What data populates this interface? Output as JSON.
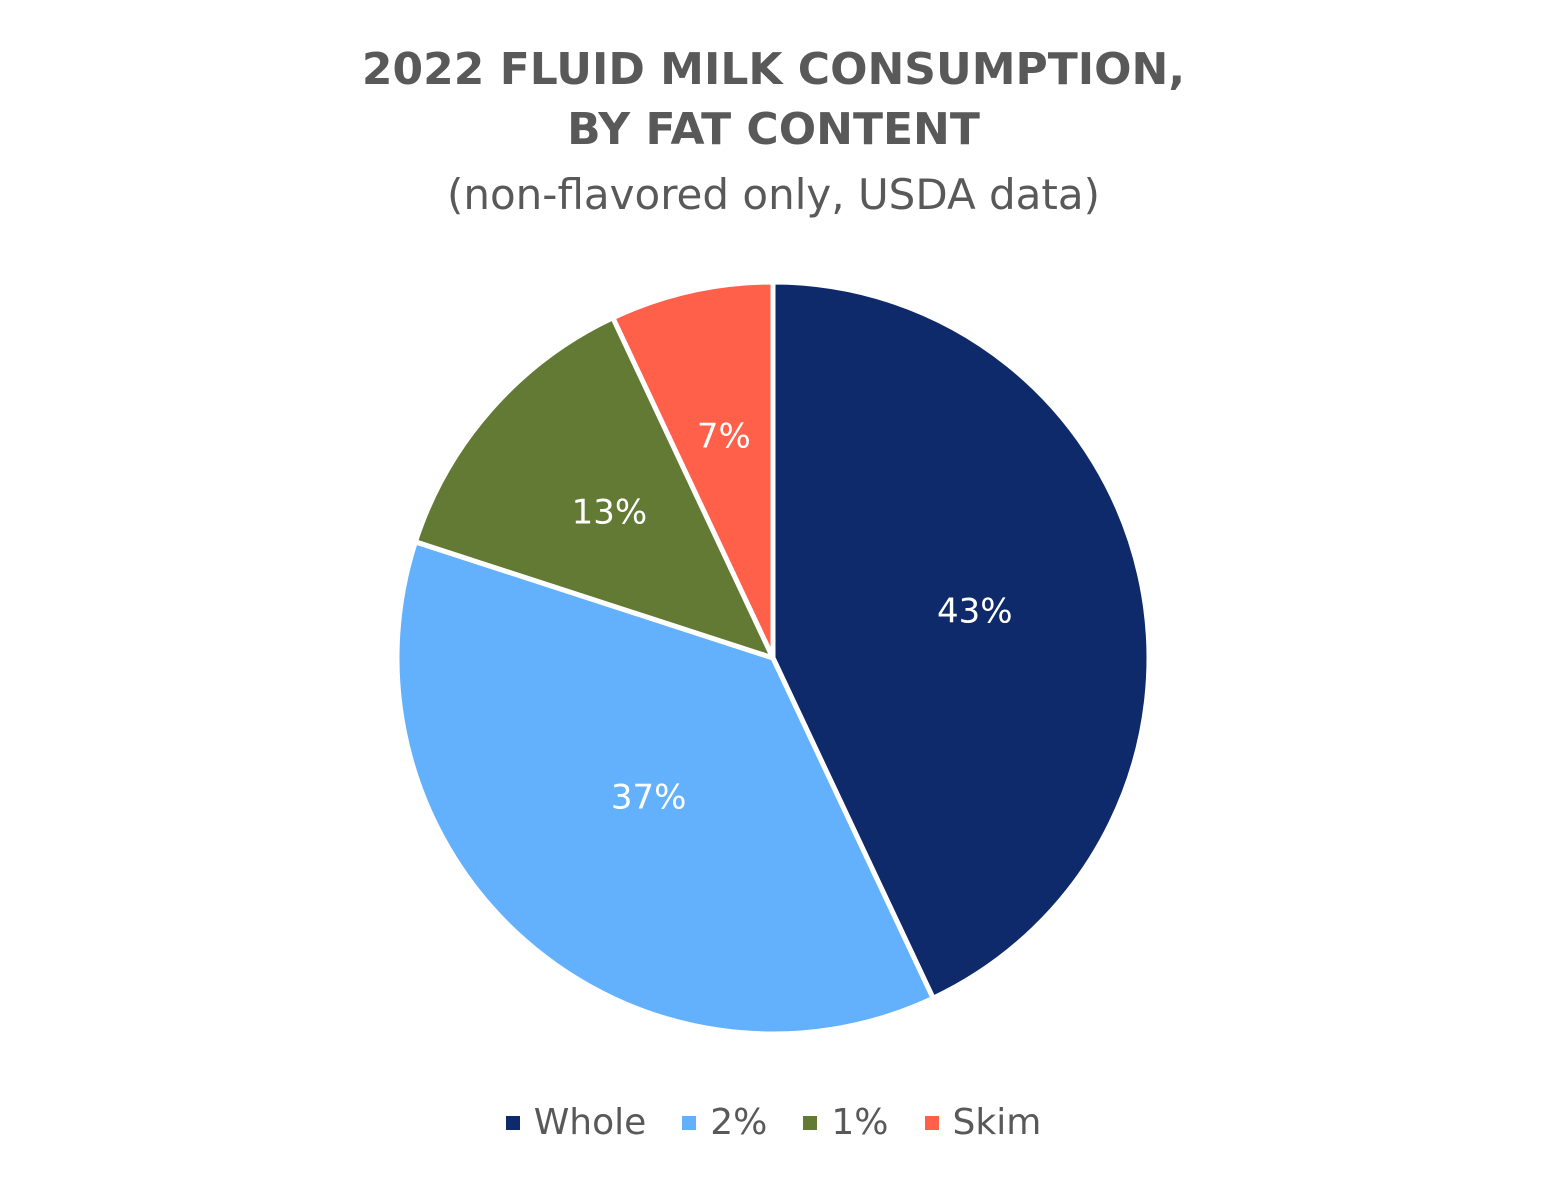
{
  "chart_data": {
    "type": "pie",
    "title": "2022 FLUID MILK CONSUMPTION,\nBY FAT CONTENT",
    "title_lines": [
      "2022 FLUID MILK CONSUMPTION,",
      "BY FAT CONTENT"
    ],
    "subtitle": "(non-flavored only, USDA data)",
    "legend_position": "bottom",
    "slices": [
      {
        "label": "Whole",
        "value": 43,
        "display": "43%",
        "color": "#0E2A6B"
      },
      {
        "label": "2%",
        "value": 37,
        "display": "37%",
        "color": "#63B1FD"
      },
      {
        "label": "1%",
        "value": 13,
        "display": "13%",
        "color": "#627A34"
      },
      {
        "label": "Skim",
        "value": 7,
        "display": "7%",
        "color": "#FF604A"
      }
    ]
  }
}
